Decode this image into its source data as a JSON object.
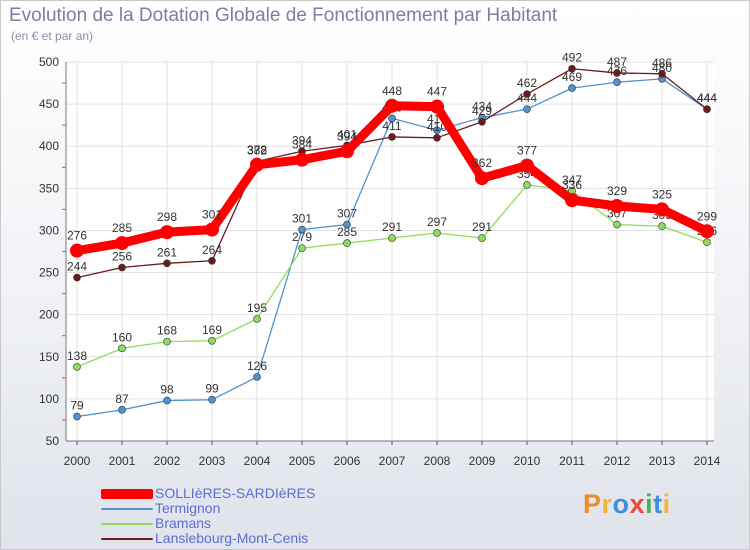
{
  "title": "Evolution de la Dotation Globale de Fonctionnement par Habitant",
  "subtitle": "(en € et par an)",
  "logo": {
    "text": "Proxiti",
    "colors": [
      "#f08a24",
      "#f3b630",
      "#3c8fd8",
      "#e94b3c",
      "#48b04a",
      "#3c8fd8",
      "#f3b630"
    ]
  },
  "chart_data": {
    "type": "line",
    "title": "Evolution de la Dotation Globale de Fonctionnement par Habitant",
    "subtitle": "(en € et par an)",
    "xlabel": "",
    "ylabel": "",
    "ylim": [
      50,
      500
    ],
    "yticks": [
      50,
      100,
      150,
      200,
      250,
      300,
      350,
      400,
      450,
      500
    ],
    "grid": true,
    "legend_position": "bottom-left",
    "x": [
      "2000",
      "2001",
      "2002",
      "2003",
      "2004",
      "2005",
      "2006",
      "2007",
      "2008",
      "2009",
      "2010",
      "2011",
      "2012",
      "2013",
      "2014"
    ],
    "series": [
      {
        "name": "SOLLIèRES-SARDIèRES",
        "color": "#ff0000",
        "emphasis": true,
        "values": [
          276,
          285,
          298,
          301,
          378,
          384,
          394,
          448,
          447,
          362,
          377,
          336,
          329,
          325,
          299
        ]
      },
      {
        "name": "Termignon",
        "color": "#4f93d0",
        "emphasis": false,
        "values": [
          79,
          87,
          98,
          99,
          126,
          301,
          307,
          433,
          419,
          434,
          444,
          469,
          476,
          480,
          444
        ]
      },
      {
        "name": "Bramans",
        "color": "#8fdc5a",
        "emphasis": false,
        "values": [
          138,
          160,
          168,
          169,
          195,
          279,
          285,
          291,
          297,
          291,
          354,
          347,
          307,
          305,
          286
        ]
      },
      {
        "name": "Lanslebourg-Mont-Cenis",
        "color": "#6b1b1b",
        "emphasis": false,
        "values": [
          244,
          256,
          261,
          264,
          382,
          394,
          401,
          411,
          410,
          429,
          462,
          492,
          487,
          486,
          444
        ]
      }
    ]
  }
}
